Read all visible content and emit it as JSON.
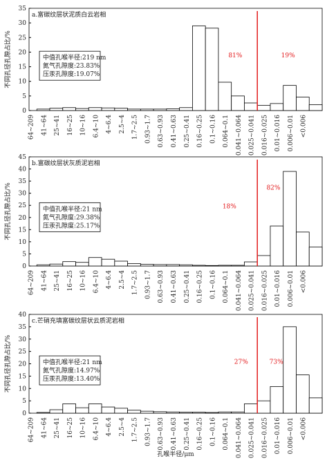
{
  "chart_data": [
    {
      "type": "bar",
      "title": "a.富碳纹层状泥质白云岩相",
      "ylabel": "不同孔径孔隙占比/%",
      "categories": [
        "64~209",
        "41~64",
        "25~41",
        "16~25",
        "10~16",
        "6.4~10",
        "4~6.4",
        "2.5~4",
        "1.7~2.5",
        "0.93~1.7",
        "0.63~0.93",
        "0.41~0.63",
        "0.25~0.41",
        "0.16~0.25",
        "0.1~0.16",
        "0.064~0.1",
        "0.041~0.064",
        "0.025~0.041",
        "0.016~0.025",
        "0.01~0.016",
        "0.006~0.01",
        "<0.006"
      ],
      "values": [
        0.5,
        0.8,
        1.0,
        0.7,
        1.0,
        0.9,
        0.8,
        0.5,
        0.5,
        0.5,
        0.6,
        1.0,
        29,
        28.2,
        9.7,
        5.0,
        2.6,
        1.8,
        2.4,
        8.6,
        4.6,
        2.0
      ],
      "color": "#ffffff",
      "ylim": [
        0,
        35
      ],
      "yticks": [
        0,
        5,
        10,
        15,
        20,
        25,
        30,
        35
      ],
      "annotations": [
        "81%",
        "19%"
      ],
      "info_box": [
        "中值孔喉半径:219 nm",
        "氮气孔隙度:23.83%",
        "压汞孔隙度:19.07%"
      ]
    },
    {
      "type": "bar",
      "title": "b.富碳纹层状灰质泥岩相",
      "ylabel": "不同孔径孔隙占比/%",
      "categories": [
        "64~209",
        "41~64",
        "25~41",
        "16~25",
        "10~16",
        "6.4~10",
        "4~6.4",
        "2.5~4",
        "1.7~2.5",
        "0.93~1.7",
        "0.63~0.93",
        "0.41~0.63",
        "0.25~0.41",
        "0.16~0.25",
        "0.1~0.16",
        "0.064~0.1",
        "0.041~0.064",
        "0.025~0.041",
        "0.016~0.025",
        "0.01~0.016",
        "0.006~0.01",
        "<0.006"
      ],
      "values": [
        0.5,
        0.8,
        1.8,
        1.5,
        3.5,
        2.8,
        2.0,
        1.0,
        0.7,
        0.6,
        0.6,
        0.5,
        0.3,
        0.2,
        0.3,
        0.3,
        1.7,
        4.3,
        16.5,
        39,
        14,
        7.8
      ],
      "color": "#ffffff",
      "ylim": [
        0,
        45
      ],
      "yticks": [
        0,
        5,
        10,
        15,
        20,
        25,
        30,
        35,
        40,
        45
      ],
      "annotations": [
        "18%",
        "82%"
      ],
      "info_box": [
        "中值孔喉半径:21 nm",
        "氮气孔隙度:29.38%",
        "压汞孔隙度:25.17%"
      ]
    },
    {
      "type": "bar",
      "title": "c.芒硝充填富碳纹层状云质泥岩相",
      "ylabel": "不同孔径孔隙占比/%",
      "xlabel": "孔喉半径/μm",
      "categories": [
        "64~209",
        "41~64",
        "25~41",
        "16~25",
        "10~16",
        "6.4~10",
        "4~6.4",
        "2.5~4",
        "1.7~2.5",
        "0.93~1.7",
        "0.63~0.93",
        "0.41~0.63",
        "0.25~0.41",
        "0.16~0.25",
        "0.1~0.16",
        "0.064~0.1",
        "0.041~0.064",
        "0.025~0.041",
        "0.016~0.025",
        "0.01~0.016",
        "0.006~0.01",
        "<0.006"
      ],
      "values": [
        0.3,
        1.4,
        3.8,
        2.2,
        3.8,
        2.5,
        2.0,
        1.2,
        0.8,
        0.6,
        0.5,
        0.4,
        0.4,
        0.3,
        0.5,
        0.5,
        3.8,
        5.0,
        10.8,
        35,
        15.5,
        6.2
      ],
      "color": "#ffffff",
      "ylim": [
        0,
        40
      ],
      "yticks": [
        0,
        5,
        10,
        15,
        20,
        25,
        30,
        35,
        40
      ],
      "annotations": [
        "27%",
        "73%"
      ],
      "info_box": [
        "中值孔喉半径:21 nm",
        "氮气孔隙度:14.97%",
        "压汞孔隙度:13.40%"
      ]
    }
  ]
}
